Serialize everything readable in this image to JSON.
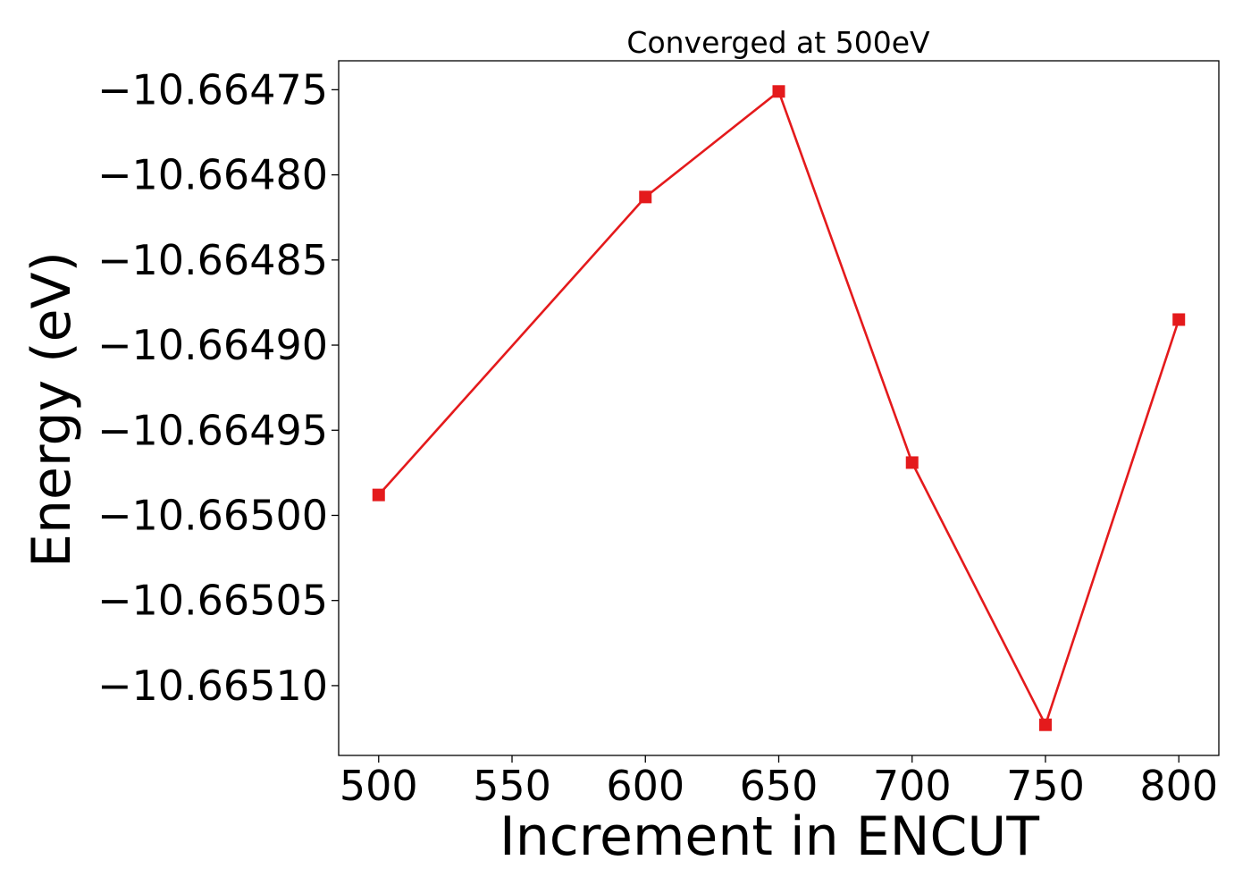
{
  "chart_data": {
    "type": "line",
    "title": "Converged at 500eV",
    "xlabel": "Increment in ENCUT",
    "ylabel": "Energy (eV)",
    "x": [
      500,
      600,
      650,
      700,
      750,
      800
    ],
    "series": [
      {
        "values": [
          -10.664988,
          -10.664813,
          -10.664751,
          -10.664969,
          -10.665123,
          -10.664885
        ],
        "color": "#e41a1c",
        "marker": "square"
      }
    ],
    "xlim": [
      485,
      815
    ],
    "ylim": [
      -10.665141,
      -10.664733
    ],
    "xticks": [
      500,
      550,
      600,
      650,
      700,
      750,
      800
    ],
    "xtick_labels": [
      "500",
      "550",
      "600",
      "650",
      "700",
      "750",
      "800"
    ],
    "yticks": [
      -10.66475,
      -10.6648,
      -10.66485,
      -10.6649,
      -10.66495,
      -10.665,
      -10.66505,
      -10.6651
    ],
    "ytick_labels": [
      "−10.66475",
      "−10.66480",
      "−10.66485",
      "−10.66490",
      "−10.66495",
      "−10.66500",
      "−10.66505",
      "−10.66510"
    ],
    "grid": false,
    "legend": false
  }
}
